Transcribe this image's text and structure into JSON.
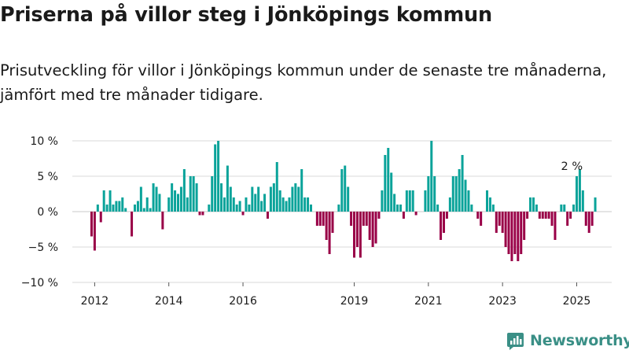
{
  "title": "Priserna på villor steg i Jönköpings kommun",
  "subtitle": "Prisutveckling för villor i Jönköpings kommun under de senaste tre månaderna, jämfört med tre månader tidigare.",
  "brand": "Newsworthy",
  "colors": {
    "positive": "#0aa39a",
    "negative": "#990047",
    "grid": "#d9d9d9",
    "text": "#1a1a1a",
    "brand": "#3a8f86"
  },
  "chart_data": {
    "type": "bar",
    "title": "Priserna på villor steg i Jönköpings kommun",
    "subtitle": "Prisutveckling för villor i Jönköpings kommun under de senaste tre månaderna, jämfört med tre månader tidigare.",
    "xlabel": "",
    "ylabel": "",
    "ylim": [
      -10,
      10
    ],
    "yticks": [
      10,
      5,
      0,
      -5,
      -10
    ],
    "ytick_labels": [
      "10 %",
      "5 %",
      "0 %",
      "−5 %",
      "−10 %"
    ],
    "xticks": [
      2012,
      2014,
      2016,
      2019,
      2021,
      2023,
      2025
    ],
    "xtick_labels": [
      "2012",
      "2014",
      "2016",
      "2019",
      "2021",
      "2023",
      "2025"
    ],
    "x_start": "2011-12",
    "annotation": {
      "text": "2 %",
      "month": "2024-12"
    },
    "grid": true,
    "legend": "none",
    "values": [
      -3.5,
      -5.5,
      1,
      -1.5,
      3,
      1,
      3,
      1,
      1.5,
      1.5,
      2,
      0.5,
      0,
      -3.5,
      1,
      1.5,
      3.5,
      0.5,
      2,
      0.5,
      4,
      3.5,
      2.5,
      -2.5,
      0,
      2,
      4,
      3,
      2.5,
      3.5,
      6,
      2,
      5,
      5,
      4,
      -0.5,
      -0.5,
      0,
      1,
      5,
      9.5,
      10,
      4,
      2,
      6.5,
      3.5,
      2,
      1,
      1.5,
      -0.5,
      2,
      1,
      3.5,
      2.5,
      3.5,
      1.5,
      2.5,
      -1,
      3.5,
      4,
      7,
      3,
      2,
      1.5,
      2,
      3.5,
      4,
      3.5,
      6,
      2,
      2,
      1,
      0,
      -2,
      -2,
      -2,
      -4,
      -6,
      -3,
      0,
      1,
      6,
      6.5,
      3.5,
      -2,
      -6.5,
      -5,
      -6.5,
      -2,
      -2,
      -4,
      -5,
      -4.5,
      -1,
      3,
      8,
      9,
      5.5,
      2.5,
      1,
      1,
      -1,
      3,
      3,
      3,
      -0.5,
      0,
      0,
      3,
      5,
      10,
      5,
      1,
      -4,
      -3,
      -1,
      2,
      5,
      5,
      6,
      8,
      4.5,
      3,
      1,
      0,
      -1,
      -2,
      0,
      3,
      2,
      1,
      -3,
      -2,
      -3,
      -5,
      -6,
      -7,
      -6,
      -7,
      -6,
      -4,
      -1,
      2,
      2,
      1,
      -1,
      -1,
      -1,
      -1,
      -2,
      -4,
      0,
      1,
      1,
      -2,
      -1,
      1,
      5,
      6,
      3,
      -2,
      -3,
      -2,
      2
    ]
  }
}
